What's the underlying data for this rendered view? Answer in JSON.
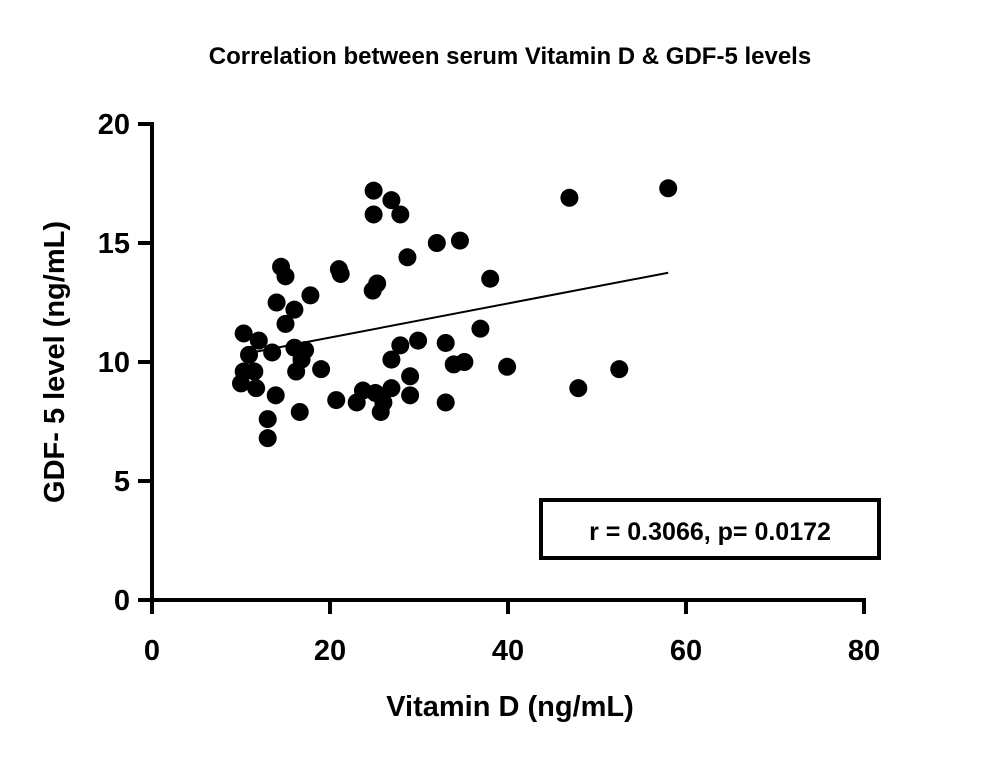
{
  "chart_data": {
    "type": "scatter",
    "title": "Correlation between serum Vitamin D & GDF-5 levels",
    "xlabel": "Vitamin D (ng/mL)",
    "ylabel": "GDF- 5 level (ng/mL)",
    "xlim": [
      0,
      80
    ],
    "ylim": [
      0,
      20
    ],
    "x_ticks": [
      "0",
      "20",
      "40",
      "60",
      "80"
    ],
    "y_ticks": [
      "0",
      "5",
      "10",
      "15",
      "20"
    ],
    "grid": false,
    "marker_color": "#000000",
    "annotation": "r = 0.3066, p= 0.0172",
    "points": [
      [
        24.9,
        17.2
      ],
      [
        26.9,
        16.8
      ],
      [
        24.9,
        16.2
      ],
      [
        27.9,
        16.2
      ],
      [
        32.0,
        15.0
      ],
      [
        34.6,
        15.1
      ],
      [
        28.7,
        14.4
      ],
      [
        14.5,
        14.0
      ],
      [
        15.0,
        13.6
      ],
      [
        21.0,
        13.9
      ],
      [
        21.2,
        13.7
      ],
      [
        25.3,
        13.3
      ],
      [
        24.8,
        13.0
      ],
      [
        38.0,
        13.5
      ],
      [
        17.8,
        12.8
      ],
      [
        14.0,
        12.5
      ],
      [
        16.0,
        12.2
      ],
      [
        15.0,
        11.6
      ],
      [
        36.9,
        11.4
      ],
      [
        10.3,
        11.2
      ],
      [
        12.0,
        10.9
      ],
      [
        16.0,
        10.6
      ],
      [
        17.2,
        10.5
      ],
      [
        27.9,
        10.7
      ],
      [
        29.9,
        10.9
      ],
      [
        33.0,
        10.8
      ],
      [
        10.9,
        10.3
      ],
      [
        13.5,
        10.4
      ],
      [
        26.9,
        10.1
      ],
      [
        33.9,
        9.9
      ],
      [
        35.1,
        10.0
      ],
      [
        39.9,
        9.8
      ],
      [
        16.8,
        10.1
      ],
      [
        16.2,
        9.6
      ],
      [
        19.0,
        9.7
      ],
      [
        10.3,
        9.6
      ],
      [
        11.5,
        9.6
      ],
      [
        10.0,
        9.1
      ],
      [
        11.7,
        8.9
      ],
      [
        13.9,
        8.6
      ],
      [
        29.0,
        9.4
      ],
      [
        29.0,
        8.6
      ],
      [
        26.9,
        8.9
      ],
      [
        33.0,
        8.3
      ],
      [
        20.7,
        8.4
      ],
      [
        23.0,
        8.3
      ],
      [
        23.7,
        8.8
      ],
      [
        25.1,
        8.7
      ],
      [
        26.0,
        8.3
      ],
      [
        25.7,
        7.9
      ],
      [
        16.6,
        7.9
      ],
      [
        13.0,
        7.6
      ],
      [
        13.0,
        6.8
      ],
      [
        46.9,
        16.9
      ],
      [
        58.0,
        17.3
      ],
      [
        47.9,
        8.9
      ],
      [
        52.5,
        9.7
      ]
    ],
    "regression_line": {
      "x": [
        11.8,
        58.0
      ],
      "y": [
        10.44,
        13.75
      ]
    }
  }
}
